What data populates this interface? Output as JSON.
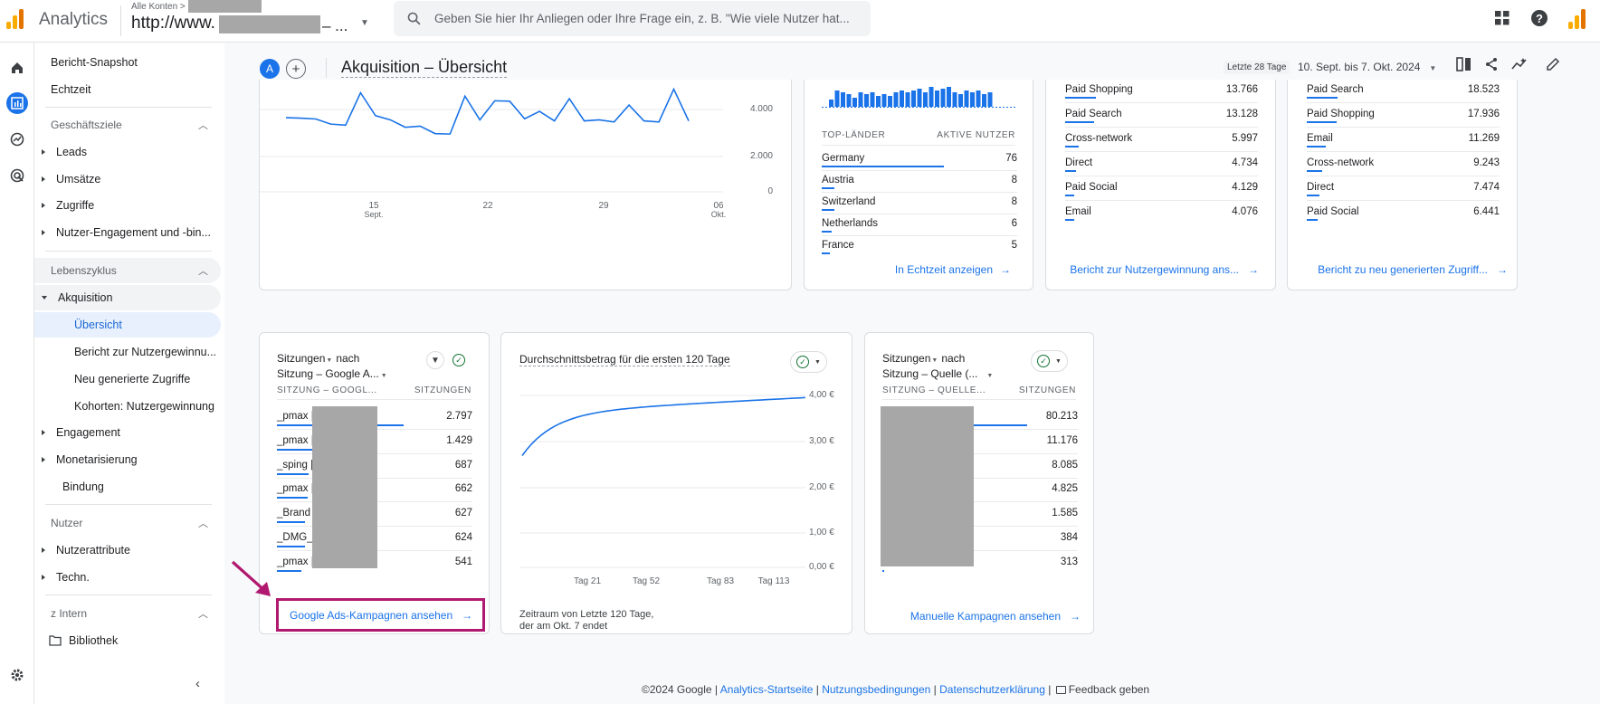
{
  "topbar": {
    "app_name": "Analytics",
    "account_crumb": "Alle Konten >",
    "property_url": "http://www.",
    "property_suffix": "– ...",
    "search_placeholder": "Geben Sie hier Ihr Anliegen oder Ihre Frage ein, z. B. \"Wie viele Nutzer hat..."
  },
  "nav": {
    "snapshot": "Bericht-Snapshot",
    "realtime": "Echtzeit",
    "goals_head": "Geschäftsziele",
    "leads": "Leads",
    "sales": "Umsätze",
    "traffic": "Zugriffe",
    "engagement_bin": "Nutzer-Engagement und -bin...",
    "lifecycle_head": "Lebenszyklus",
    "acquisition": "Akquisition",
    "overview": "Übersicht",
    "user_acq": "Bericht zur Nutzergewinnu...",
    "new_traffic": "Neu generierte Zugriffe",
    "cohorts": "Kohorten: Nutzergewinnung",
    "engagement": "Engagement",
    "monetization": "Monetarisierung",
    "retention": "Bindung",
    "user_head": "Nutzer",
    "user_attr": "Nutzerattribute",
    "tech": "Techn.",
    "intern_head": "z Intern",
    "library": "Bibliothek"
  },
  "header": {
    "avatar_letter": "A",
    "title": "Akquisition – Übersicht",
    "chip": "Letzte 28 Tage",
    "date_range": "10. Sept. bis 7. Okt. 2024"
  },
  "line_card": {
    "y_ticks": [
      "4.000",
      "2.000",
      "0"
    ],
    "x_ticks": [
      {
        "day": "15",
        "month": "Sept."
      },
      {
        "day": "22",
        "month": ""
      },
      {
        "day": "29",
        "month": ""
      },
      {
        "day": "06",
        "month": "Okt."
      }
    ],
    "values": [
      3500,
      3480,
      3440,
      3200,
      3150,
      4680,
      3600,
      3400,
      3050,
      3100,
      2750,
      2730,
      4520,
      3400,
      4300,
      4280,
      3450,
      3800,
      3350,
      4400,
      3350,
      3400,
      3300,
      4100,
      3350,
      3300,
      4850,
      3350
    ]
  },
  "countries_card": {
    "col_a": "TOP-LÄNDER",
    "col_b": "AKTIVE NUTZER",
    "rows": [
      {
        "name": "Germany",
        "value": "76",
        "frac": 1.0
      },
      {
        "name": "Austria",
        "value": "8",
        "frac": 0.1
      },
      {
        "name": "Switzerland",
        "value": "8",
        "frac": 0.1
      },
      {
        "name": "Netherlands",
        "value": "6",
        "frac": 0.08
      },
      {
        "name": "France",
        "value": "5",
        "frac": 0.07
      }
    ],
    "link": "In Echtzeit anzeigen",
    "spark": [
      4,
      9,
      8,
      7,
      5,
      8,
      7,
      8,
      6,
      7,
      6,
      8,
      9,
      8,
      9,
      10,
      8,
      11,
      9,
      10,
      11,
      8,
      7,
      9,
      8,
      9,
      7,
      8
    ]
  },
  "user_acq_card": {
    "rows": [
      {
        "name": "Paid Shopping",
        "value": "13.766"
      },
      {
        "name": "Paid Search",
        "value": "13.128"
      },
      {
        "name": "Cross-network",
        "value": "5.997"
      },
      {
        "name": "Direct",
        "value": "4.734"
      },
      {
        "name": "Paid Social",
        "value": "4.129"
      },
      {
        "name": "Email",
        "value": "4.076"
      }
    ],
    "link": "Bericht zur Nutzergewinnung ans..."
  },
  "new_traffic_card": {
    "rows": [
      {
        "name": "Paid Search",
        "value": "18.523"
      },
      {
        "name": "Paid Shopping",
        "value": "17.936"
      },
      {
        "name": "Email",
        "value": "11.269"
      },
      {
        "name": "Cross-network",
        "value": "9.243"
      },
      {
        "name": "Direct",
        "value": "7.474"
      },
      {
        "name": "Paid Social",
        "value": "6.441"
      }
    ],
    "link": "Bericht zu neu generierten Zugriff..."
  },
  "ads_card": {
    "title1": "Sitzungen",
    "title1b": "nach",
    "title2": "Sitzung – Google A...",
    "col_a": "SITZUNG – GOOGL...",
    "col_b": "SITZUNGEN",
    "rows": [
      {
        "name": "_pmax |",
        "value": "2.797",
        "frac": 1.0
      },
      {
        "name": "_pmax |",
        "value": "1.429",
        "frac": 0.51
      },
      {
        "name": "_sping |",
        "value": "687",
        "frac": 0.25
      },
      {
        "name": "_pmax |",
        "value": "662",
        "frac": 0.24
      },
      {
        "name": "_Brand",
        "value": "627",
        "frac": 0.22
      },
      {
        "name": "_DMG_c",
        "value": "624",
        "frac": 0.22
      },
      {
        "name": "_pmax |",
        "value": "541",
        "frac": 0.19
      }
    ],
    "link": "Google Ads-Kampagnen ansehen"
  },
  "ltv_card": {
    "title": "Durchschnittsbetrag für die ersten 120 Tage",
    "y_ticks": [
      "4,00 €",
      "3,00 €",
      "2,00 €",
      "1,00 €",
      "0,00 €"
    ],
    "x_ticks": [
      "Tag 21",
      "Tag 52",
      "Tag 83",
      "Tag 113"
    ],
    "footnote_1": "Zeitraum von Letzte 120 Tage,",
    "footnote_2": "der am Okt. 7 endet"
  },
  "manual_card": {
    "title1": "Sitzungen",
    "title1b": "nach",
    "title2": "Sitzung – Quelle (...",
    "col_a": "SITZUNG – QUELLE...",
    "col_b": "SITZUNGEN",
    "rows": [
      {
        "value": "80.213",
        "frac": 1.0
      },
      {
        "value": "11.176",
        "frac": 0.14
      },
      {
        "value": "8.085",
        "frac": 0.1
      },
      {
        "value": "4.825",
        "frac": 0.06
      },
      {
        "value": "1.585",
        "frac": 0.02
      },
      {
        "value": "384",
        "frac": 0.005
      },
      {
        "value": "313",
        "frac": 0.004
      }
    ],
    "link": "Manuelle Kampagnen ansehen"
  },
  "footer": {
    "copyright": "©2024 Google |",
    "home": "Analytics-Startseite",
    "terms": "Nutzungsbedingungen",
    "privacy": "Datenschutzerklärung",
    "sep": "|",
    "feedback": "Feedback geben"
  },
  "colors": {
    "accent": "#1a73e8",
    "highlight": "#b0196f",
    "logo": "#f9ab00"
  }
}
